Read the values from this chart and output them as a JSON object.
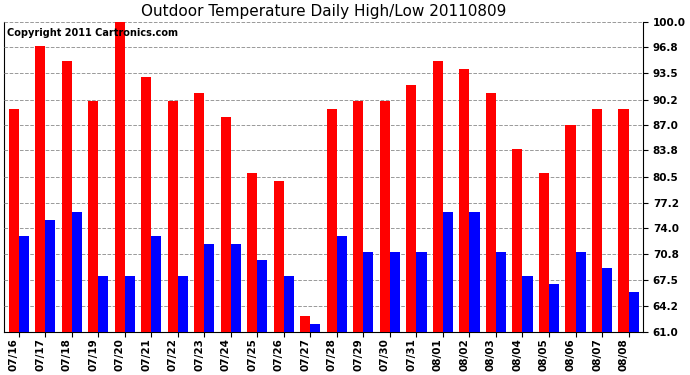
{
  "title": "Outdoor Temperature Daily High/Low 20110809",
  "copyright": "Copyright 2011 Cartronics.com",
  "dates": [
    "07/16",
    "07/17",
    "07/18",
    "07/19",
    "07/20",
    "07/21",
    "07/22",
    "07/23",
    "07/24",
    "07/25",
    "07/26",
    "07/27",
    "07/28",
    "07/29",
    "07/30",
    "07/31",
    "08/01",
    "08/02",
    "08/03",
    "08/04",
    "08/05",
    "08/06",
    "08/07",
    "08/08"
  ],
  "highs": [
    89,
    97,
    95,
    90,
    100,
    93,
    90,
    91,
    88,
    81,
    80,
    63,
    89,
    90,
    90,
    92,
    95,
    94,
    91,
    84,
    81,
    87,
    89,
    89
  ],
  "lows": [
    73,
    75,
    76,
    68,
    68,
    73,
    68,
    72,
    72,
    70,
    68,
    62,
    73,
    71,
    71,
    71,
    76,
    76,
    71,
    68,
    67,
    71,
    69,
    66
  ],
  "high_color": "#FF0000",
  "low_color": "#0000FF",
  "bg_color": "#FFFFFF",
  "plot_bg_color": "#FFFFFF",
  "grid_color": "#999999",
  "ylim": [
    61.0,
    100.0
  ],
  "yticks": [
    61.0,
    64.2,
    67.5,
    70.8,
    74.0,
    77.2,
    80.5,
    83.8,
    87.0,
    90.2,
    93.5,
    96.8,
    100.0
  ],
  "bar_width": 0.38,
  "title_fontsize": 11,
  "tick_fontsize": 7.5,
  "copyright_fontsize": 7,
  "xlabel_rotation": 90
}
